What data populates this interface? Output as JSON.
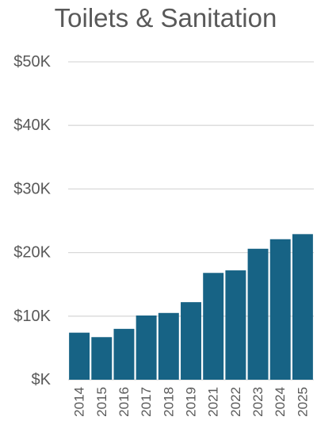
{
  "chart_data": {
    "type": "bar",
    "title": "Toilets & Sanitation",
    "categories": [
      "2014",
      "2015",
      "2016",
      "2017",
      "2018",
      "2019",
      "2021",
      "2022",
      "2023",
      "2024",
      "2025"
    ],
    "values": [
      7400,
      6700,
      8000,
      10100,
      10500,
      12200,
      16800,
      17200,
      20600,
      22100,
      22900
    ],
    "ylim": [
      0,
      50000
    ],
    "yticks": [
      0,
      10000,
      20000,
      30000,
      40000,
      50000
    ],
    "ytick_labels": [
      "$K",
      "$10K",
      "$20K",
      "$30K",
      "$40K",
      "$50K"
    ],
    "xlabel": "",
    "ylabel": "",
    "grid": true,
    "colors": {
      "bar": "#176385",
      "grid": "#d9d9d9",
      "text": "#595959"
    }
  }
}
